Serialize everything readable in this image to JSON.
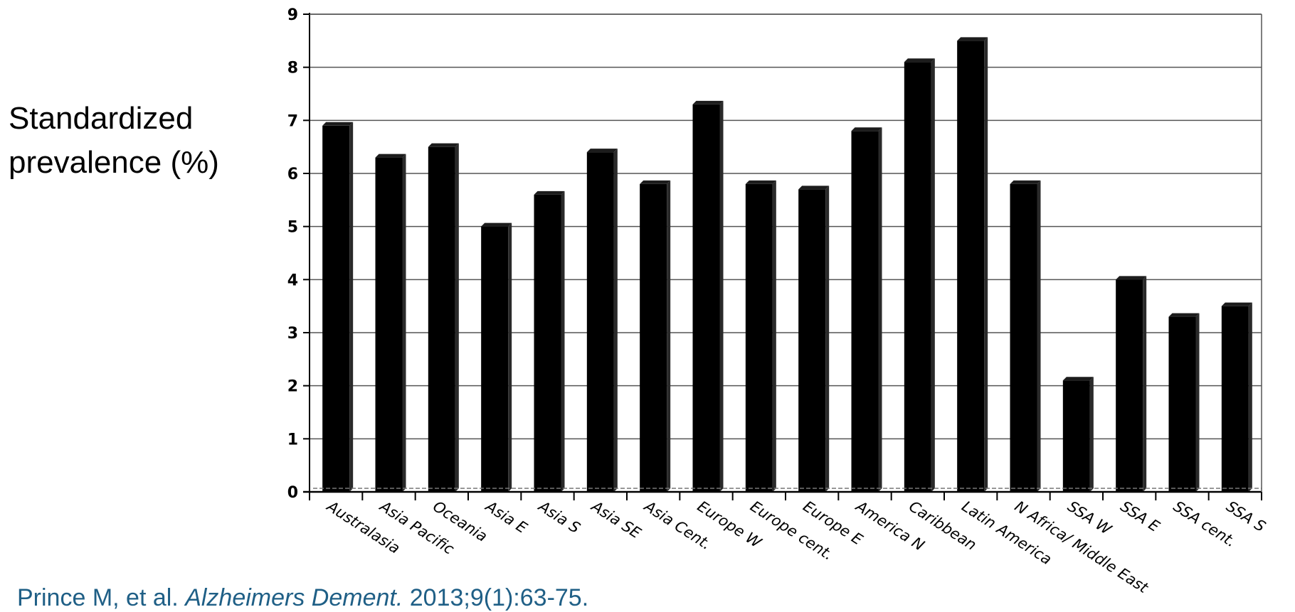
{
  "chart_data": {
    "type": "bar",
    "categories": [
      "Australasia",
      "Asia Pacific",
      "Oceania",
      "Asia E",
      "Asia S",
      "Asia SE",
      "Asia Cent.",
      "Europe W",
      "Europe cent.",
      "Europe E",
      "America N",
      "Caribbean",
      "Latin America",
      "N Africa/ Middle East",
      "SSA W",
      "SSA E",
      "SSA cent.",
      "SSA S"
    ],
    "values": [
      6.9,
      6.3,
      6.5,
      5.0,
      5.6,
      6.4,
      5.8,
      7.3,
      5.8,
      5.7,
      6.8,
      8.1,
      8.5,
      5.8,
      2.1,
      4.0,
      3.3,
      3.5
    ],
    "ylabel_line1": "Standardized",
    "ylabel_line2": "prevalence (%)",
    "xlabel": "",
    "ylim": [
      0,
      9
    ],
    "yticks": [
      0,
      1,
      2,
      3,
      4,
      5,
      6,
      7,
      8,
      9
    ],
    "grid": true,
    "bar_color": "#000000"
  },
  "citation": {
    "authors": "Prince M, et al.",
    "journal": "Alzheimers Dement.",
    "details": "2013;9(1):63-75."
  },
  "colors": {
    "citation": "#1f5f86",
    "grid": "#555555"
  }
}
